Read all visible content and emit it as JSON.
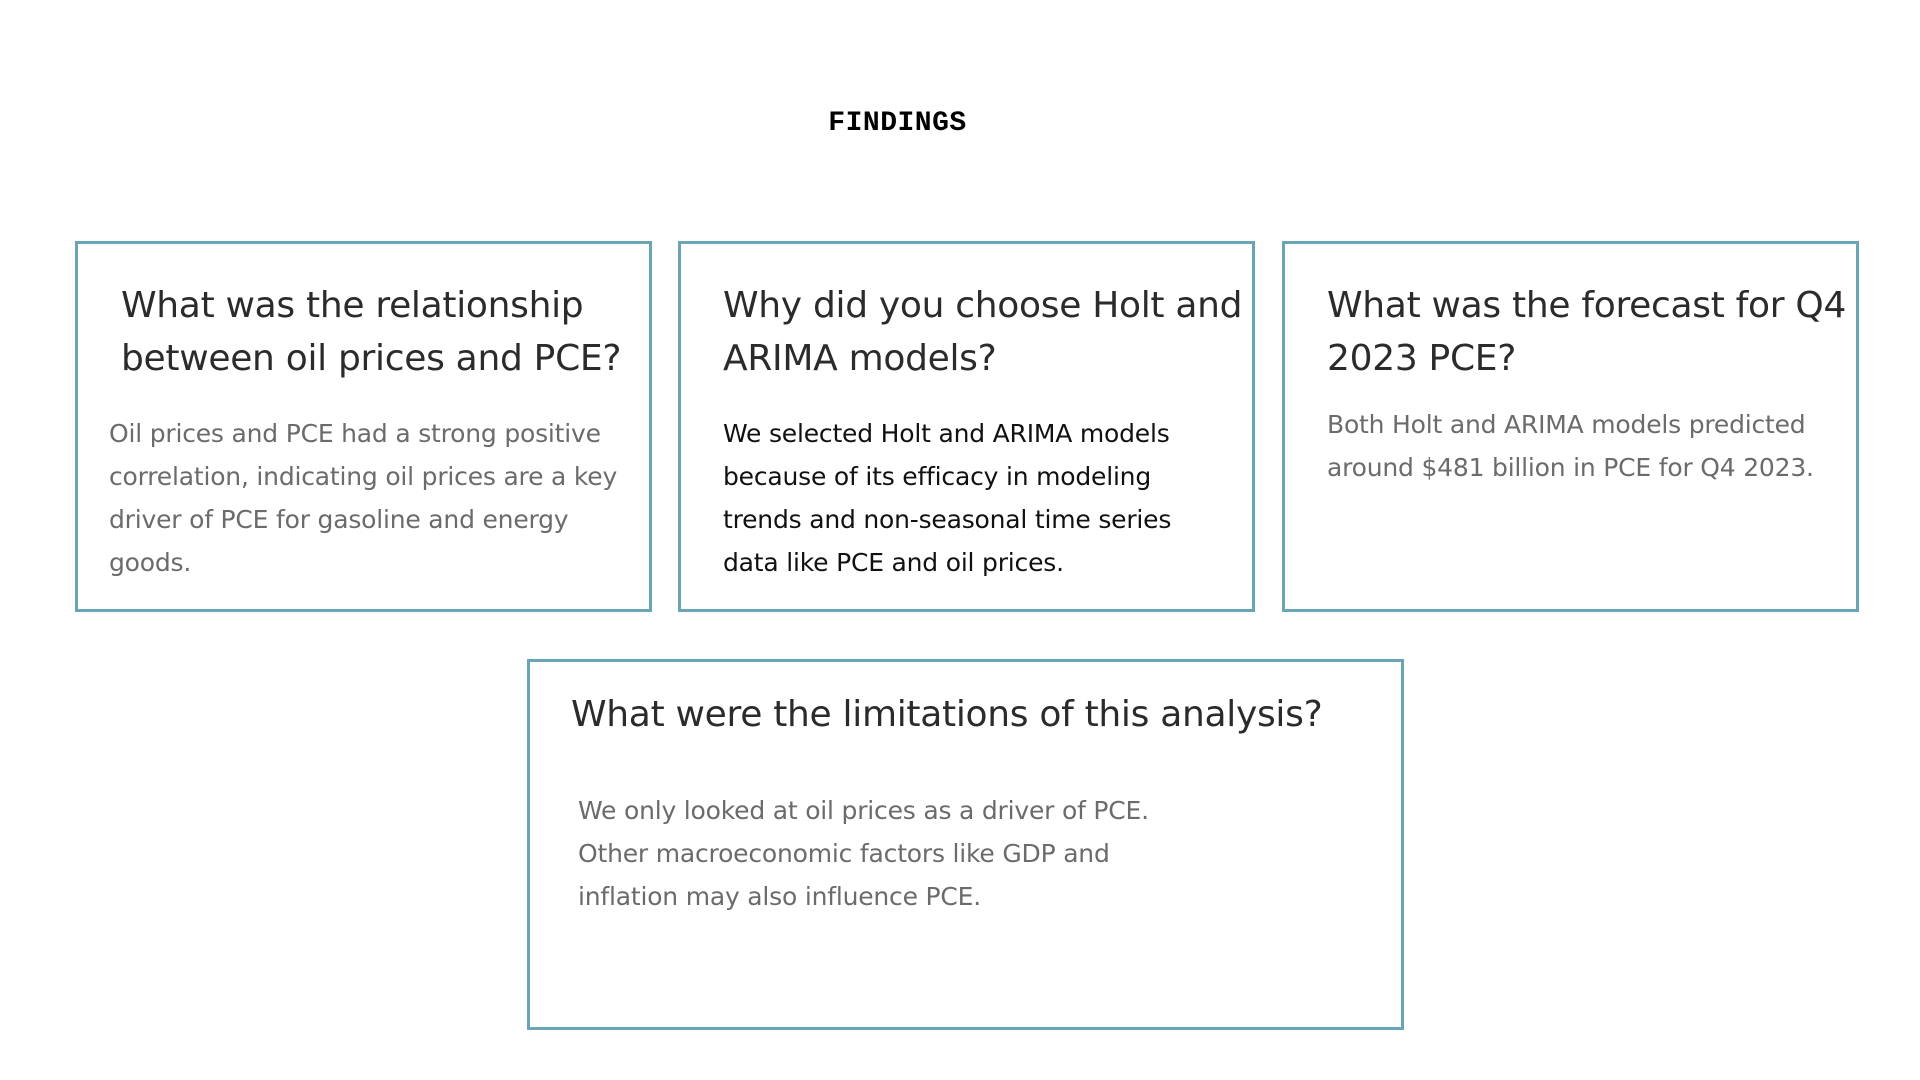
{
  "slide": {
    "title": "FINDINGS"
  },
  "cards": [
    {
      "question": "What was the relationship between oil prices and PCE?",
      "answer": "Oil prices and PCE had a strong positive correlation, indicating oil prices are a key driver of PCE for gasoline and energy goods."
    },
    {
      "question": "Why did you choose Holt and ARIMA models?",
      "answer": "We selected Holt and ARIMA models because of its efficacy in modeling trends and non-seasonal time series data like PCE and oil prices."
    },
    {
      "question": "What was the forecast for Q4 2023 PCE?",
      "answer": "Both Holt and ARIMA models predicted around $481 billion in PCE for Q4 2023."
    },
    {
      "question": "What were the limitations of this analysis?",
      "answer": "We only looked at oil prices as a driver of PCE. Other macroeconomic factors like GDP and inflation may also influence PCE."
    }
  ],
  "colors": {
    "card_border": "#6aa5b5",
    "question_text": "#2b2b2b",
    "answer_text_muted": "#6b6b6b",
    "answer_text_dark": "#111111"
  }
}
